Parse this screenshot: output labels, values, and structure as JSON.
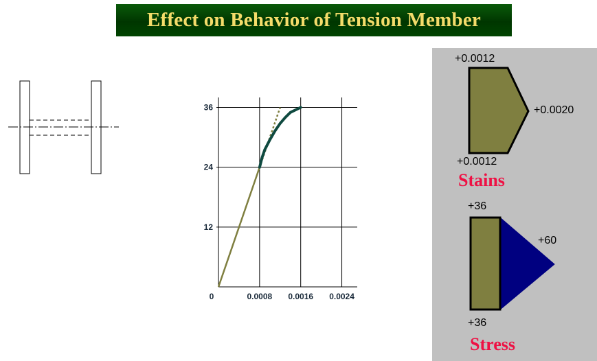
{
  "title": "Effect on Behavior of Tension Member",
  "colors": {
    "title_bg": "#003600",
    "title_text": "#f4dc6a",
    "olive": "#7f7f40",
    "navy": "#000080",
    "dark_teal": "#0f4a40",
    "label_red": "#ee1144",
    "panel_bg": "#c0c0c0"
  },
  "chart_data": {
    "type": "line",
    "x_ticks": [
      "0",
      "0.0008",
      "0.0016",
      "0.0024"
    ],
    "y_ticks": [
      "12",
      "24",
      "36"
    ],
    "xlim": [
      0,
      0.0027
    ],
    "ylim": [
      0,
      38
    ],
    "grid": true,
    "series": [
      {
        "style": "linear-elastic",
        "x": [
          0,
          0.0008
        ],
        "y": [
          0,
          24
        ]
      },
      {
        "style": "elastic-extension-dashed",
        "x": [
          0.0008,
          0.0012
        ],
        "y": [
          24,
          36
        ]
      },
      {
        "style": "inelastic",
        "x": [
          0.0008,
          0.00085,
          0.0009,
          0.001,
          0.0011,
          0.0012,
          0.0013,
          0.0014,
          0.0016
        ],
        "y": [
          24,
          26,
          27.5,
          29.5,
          31.3,
          32.8,
          34.0,
          35.0,
          36
        ]
      }
    ]
  },
  "strain_diagram": {
    "top_value": "+0.0012",
    "peak_value": "+0.0020",
    "bottom_value": "+0.0012",
    "label": "Stains"
  },
  "stress_diagram": {
    "top_value": "+36",
    "peak_value": "+60",
    "bottom_value": "+36",
    "label": "Stress"
  }
}
